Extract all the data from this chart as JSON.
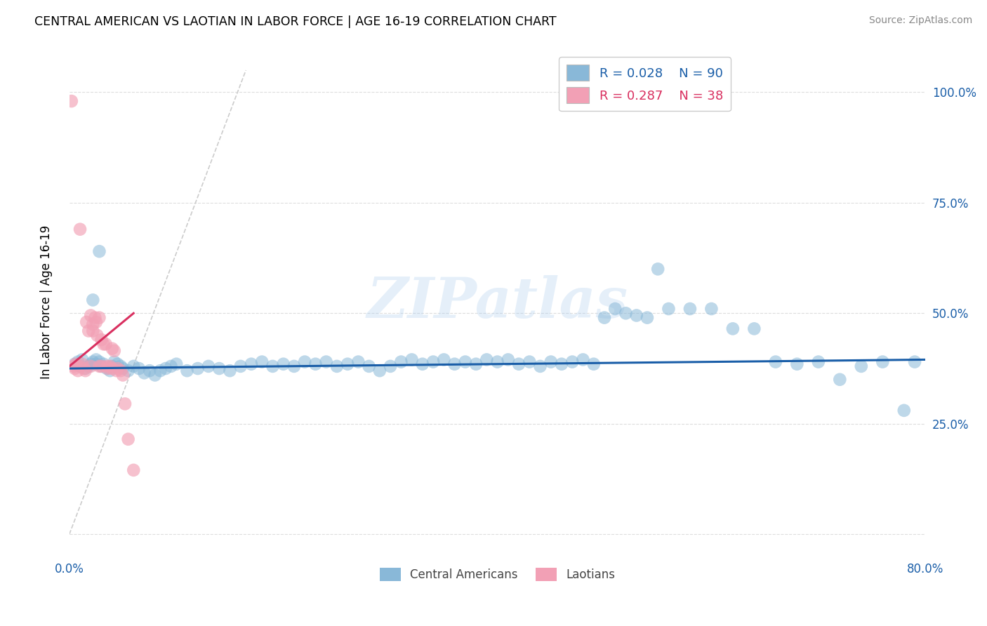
{
  "title": "CENTRAL AMERICAN VS LAOTIAN IN LABOR FORCE | AGE 16-19 CORRELATION CHART",
  "source": "Source: ZipAtlas.com",
  "ylabel": "In Labor Force | Age 16-19",
  "xlim": [
    0.0,
    0.8
  ],
  "ylim": [
    -0.05,
    1.1
  ],
  "yticks": [
    0.0,
    0.25,
    0.5,
    0.75,
    1.0
  ],
  "ytick_labels": [
    "",
    "25.0%",
    "50.0%",
    "75.0%",
    "100.0%"
  ],
  "xticks": [
    0.0,
    0.1,
    0.2,
    0.3,
    0.4,
    0.5,
    0.6,
    0.7,
    0.8
  ],
  "xtick_labels": [
    "0.0%",
    "",
    "",
    "",
    "",
    "",
    "",
    "",
    "80.0%"
  ],
  "blue_color": "#89B8D8",
  "pink_color": "#F2A0B5",
  "blue_line_color": "#1A5EA8",
  "pink_line_color": "#D93060",
  "gray_line_color": "#CCCCCC",
  "legend_blue_r": "R = 0.028",
  "legend_blue_n": "N = 90",
  "legend_pink_r": "R = 0.287",
  "legend_pink_n": "N = 38",
  "watermark": "ZIPatlas",
  "blue_scatter_x": [
    0.005,
    0.008,
    0.01,
    0.012,
    0.015,
    0.018,
    0.02,
    0.022,
    0.025,
    0.025,
    0.028,
    0.03,
    0.032,
    0.035,
    0.038,
    0.04,
    0.042,
    0.045,
    0.048,
    0.05,
    0.055,
    0.06,
    0.065,
    0.07,
    0.075,
    0.08,
    0.085,
    0.09,
    0.095,
    0.1,
    0.11,
    0.12,
    0.13,
    0.14,
    0.15,
    0.16,
    0.17,
    0.18,
    0.19,
    0.2,
    0.21,
    0.22,
    0.23,
    0.24,
    0.25,
    0.26,
    0.27,
    0.28,
    0.29,
    0.3,
    0.31,
    0.32,
    0.33,
    0.34,
    0.35,
    0.36,
    0.37,
    0.38,
    0.39,
    0.4,
    0.41,
    0.42,
    0.43,
    0.44,
    0.45,
    0.46,
    0.47,
    0.48,
    0.49,
    0.5,
    0.51,
    0.52,
    0.53,
    0.54,
    0.55,
    0.56,
    0.58,
    0.6,
    0.62,
    0.64,
    0.66,
    0.68,
    0.7,
    0.72,
    0.74,
    0.76,
    0.78,
    0.79,
    0.028,
    0.022
  ],
  "blue_scatter_y": [
    0.385,
    0.39,
    0.38,
    0.395,
    0.375,
    0.38,
    0.385,
    0.39,
    0.385,
    0.395,
    0.39,
    0.38,
    0.385,
    0.375,
    0.37,
    0.38,
    0.39,
    0.385,
    0.38,
    0.375,
    0.37,
    0.38,
    0.375,
    0.365,
    0.37,
    0.36,
    0.37,
    0.375,
    0.38,
    0.385,
    0.37,
    0.375,
    0.38,
    0.375,
    0.37,
    0.38,
    0.385,
    0.39,
    0.38,
    0.385,
    0.38,
    0.39,
    0.385,
    0.39,
    0.38,
    0.385,
    0.39,
    0.38,
    0.37,
    0.38,
    0.39,
    0.395,
    0.385,
    0.39,
    0.395,
    0.385,
    0.39,
    0.385,
    0.395,
    0.39,
    0.395,
    0.385,
    0.39,
    0.38,
    0.39,
    0.385,
    0.39,
    0.395,
    0.385,
    0.49,
    0.51,
    0.5,
    0.495,
    0.49,
    0.6,
    0.51,
    0.51,
    0.51,
    0.465,
    0.465,
    0.39,
    0.385,
    0.39,
    0.35,
    0.38,
    0.39,
    0.28,
    0.39,
    0.64,
    0.53
  ],
  "pink_scatter_x": [
    0.002,
    0.004,
    0.005,
    0.006,
    0.008,
    0.01,
    0.01,
    0.012,
    0.014,
    0.015,
    0.016,
    0.018,
    0.02,
    0.02,
    0.022,
    0.022,
    0.024,
    0.025,
    0.026,
    0.028,
    0.028,
    0.03,
    0.03,
    0.032,
    0.034,
    0.035,
    0.036,
    0.038,
    0.04,
    0.04,
    0.042,
    0.044,
    0.045,
    0.048,
    0.05,
    0.052,
    0.055,
    0.06
  ],
  "pink_scatter_y": [
    0.98,
    0.38,
    0.375,
    0.385,
    0.37,
    0.38,
    0.69,
    0.385,
    0.375,
    0.37,
    0.48,
    0.46,
    0.38,
    0.495,
    0.475,
    0.46,
    0.49,
    0.48,
    0.45,
    0.49,
    0.38,
    0.38,
    0.44,
    0.43,
    0.43,
    0.38,
    0.375,
    0.38,
    0.375,
    0.42,
    0.415,
    0.37,
    0.375,
    0.37,
    0.36,
    0.295,
    0.215,
    0.145
  ],
  "gray_line_x": [
    0.0,
    0.165
  ],
  "gray_line_y": [
    0.0,
    1.05
  ],
  "blue_trend_x": [
    0.0,
    0.8
  ],
  "blue_trend_y": [
    0.375,
    0.395
  ],
  "pink_trend_x": [
    0.0,
    0.06
  ],
  "pink_trend_y": [
    0.38,
    0.5
  ]
}
